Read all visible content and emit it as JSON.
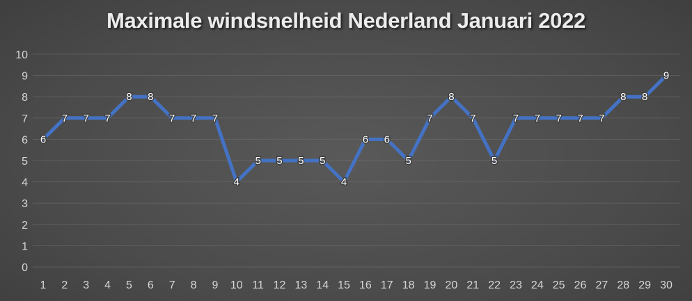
{
  "chart_data": {
    "type": "line",
    "title": "Maximale windsnelheid Nederland Januari 2022",
    "x": [
      1,
      2,
      3,
      4,
      5,
      6,
      7,
      8,
      9,
      10,
      11,
      12,
      13,
      14,
      15,
      16,
      17,
      18,
      19,
      20,
      21,
      22,
      23,
      24,
      25,
      26,
      27,
      28,
      29,
      30
    ],
    "series": [
      {
        "name": "Maximale windsnelheid",
        "values": [
          6,
          7,
          7,
          7,
          8,
          8,
          7,
          7,
          7,
          4,
          5,
          5,
          5,
          5,
          4,
          6,
          6,
          5,
          7,
          8,
          7,
          5,
          7,
          7,
          7,
          7,
          7,
          8,
          8,
          9
        ]
      }
    ],
    "xlabel": "",
    "ylabel": "",
    "ylim": [
      0,
      10
    ],
    "yticks": [
      0,
      1,
      2,
      3,
      4,
      5,
      6,
      7,
      8,
      9,
      10
    ],
    "grid": true,
    "legend_position": "none",
    "data_labels": true,
    "colors": {
      "line": "#4472C4",
      "data_label": "#ffffff",
      "data_label_halo": "#3f3f3f",
      "tick_label": "#d6d6d6",
      "gridline": "#777777",
      "title": "#ececec",
      "background_center": "#595959",
      "background_edge": "#2b2b2b"
    }
  }
}
